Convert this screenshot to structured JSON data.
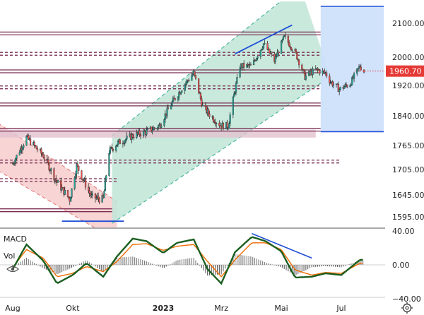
{
  "chart_data": [
    {
      "type": "candlestick",
      "title": "",
      "xlabel": "",
      "ylabel": "",
      "ylim": [
        1560,
        2160
      ],
      "x_range": [
        "2022-08-01",
        "2023-07-24"
      ],
      "y_ticks": [
        "2100.00",
        "2000.00",
        "1920.00",
        "1840.00",
        "1765.00",
        "1705.00",
        "1645.00",
        "1595.00"
      ],
      "y_tick_values": [
        2100,
        2000,
        1920,
        1840,
        1765,
        1705,
        1645,
        1595
      ],
      "x_ticks": [
        "Aug",
        "Okt",
        "2023",
        "Mrz",
        "Mai",
        "Jul"
      ],
      "x_tick_dates": [
        "2022-08-01",
        "2022-10-01",
        "2023-01-01",
        "2023-03-01",
        "2023-05-01",
        "2023-07-01"
      ],
      "last_price": "1960.70",
      "last_price_value": 1960.7,
      "price_points": [
        [
          "2022-08-01",
          1720
        ],
        [
          "2022-08-15",
          1785
        ],
        [
          "2022-09-01",
          1740
        ],
        [
          "2022-09-15",
          1675
        ],
        [
          "2022-09-28",
          1635
        ],
        [
          "2022-10-05",
          1715
        ],
        [
          "2022-10-20",
          1640
        ],
        [
          "2022-11-01",
          1635
        ],
        [
          "2022-11-07",
          1750
        ],
        [
          "2022-11-15",
          1770
        ],
        [
          "2022-12-01",
          1790
        ],
        [
          "2022-12-15",
          1800
        ],
        [
          "2022-12-28",
          1815
        ],
        [
          "2023-01-10",
          1875
        ],
        [
          "2023-01-26",
          1935
        ],
        [
          "2023-02-01",
          1955
        ],
        [
          "2023-02-10",
          1865
        ],
        [
          "2023-02-20",
          1835
        ],
        [
          "2023-03-01",
          1815
        ],
        [
          "2023-03-08",
          1815
        ],
        [
          "2023-03-20",
          1975
        ],
        [
          "2023-04-01",
          1975
        ],
        [
          "2023-04-13",
          2040
        ],
        [
          "2023-04-24",
          1990
        ],
        [
          "2023-05-04",
          2060
        ],
        [
          "2023-05-15",
          2015
        ],
        [
          "2023-05-25",
          1945
        ],
        [
          "2023-06-05",
          1965
        ],
        [
          "2023-06-15",
          1955
        ],
        [
          "2023-06-20",
          1930
        ],
        [
          "2023-06-29",
          1910
        ],
        [
          "2023-07-10",
          1925
        ],
        [
          "2023-07-20",
          1975
        ],
        [
          "2023-07-24",
          1960
        ]
      ],
      "horizontal_lines": [
        {
          "value": 2070,
          "style": "double-solid"
        },
        {
          "value": 2010,
          "style": "double-dashed"
        },
        {
          "value": 1960,
          "style": "double-solid"
        },
        {
          "value": 1915,
          "style": "double-dashed"
        },
        {
          "value": 1870,
          "style": "double-solid"
        },
        {
          "value": 1805,
          "style": "double-solid"
        },
        {
          "value": 1725,
          "style": "double-dashed"
        },
        {
          "value": 1680,
          "style": "double-dashed"
        },
        {
          "value": 1610,
          "style": "double-solid"
        }
      ],
      "zones": [
        {
          "type": "descending-channel",
          "color": "#f6c6c6"
        },
        {
          "type": "ascending-channel",
          "color": "#bfe5d7"
        },
        {
          "type": "box",
          "color": "#cfe0fb"
        },
        {
          "type": "band",
          "from": 1785,
          "to": 1805,
          "color": "#e2c2d0"
        }
      ],
      "colors": {
        "up": "#26a69a",
        "down": "#ef5350",
        "trend": "#1f4fd6",
        "level": "#7a2e52",
        "price_tag": "#e53935"
      }
    },
    {
      "type": "line",
      "title": "MACD",
      "legend": [
        "MACD",
        "Vol"
      ],
      "ylim": [
        -40,
        40
      ],
      "y_ticks": [
        "40.00",
        "0.00",
        "−40.00"
      ],
      "y_tick_values": [
        40,
        0,
        -40
      ],
      "series": [
        {
          "name": "MACD",
          "color": "#1b5e20",
          "values": [
            [
              "2022-08-01",
              -5
            ],
            [
              "2022-08-15",
              24
            ],
            [
              "2022-09-01",
              5
            ],
            [
              "2022-09-15",
              -22
            ],
            [
              "2022-10-01",
              -12
            ],
            [
              "2022-10-15",
              2
            ],
            [
              "2022-11-01",
              -14
            ],
            [
              "2022-11-15",
              10
            ],
            [
              "2022-12-01",
              31
            ],
            [
              "2022-12-15",
              28
            ],
            [
              "2023-01-01",
              14
            ],
            [
              "2023-01-15",
              26
            ],
            [
              "2023-02-01",
              30
            ],
            [
              "2023-02-15",
              -5
            ],
            [
              "2023-03-01",
              -22
            ],
            [
              "2023-03-15",
              15
            ],
            [
              "2023-04-01",
              33
            ],
            [
              "2023-04-15",
              28
            ],
            [
              "2023-05-01",
              16
            ],
            [
              "2023-05-15",
              -15
            ],
            [
              "2023-06-01",
              -14
            ],
            [
              "2023-06-15",
              -10
            ],
            [
              "2023-07-01",
              -12
            ],
            [
              "2023-07-20",
              6
            ]
          ]
        },
        {
          "values": [
            [
              "2022-08-01",
              -3
            ],
            [
              "2022-08-15",
              18
            ],
            [
              "2022-09-01",
              8
            ],
            [
              "2022-09-15",
              -14
            ],
            [
              "2022-10-01",
              -10
            ],
            [
              "2022-10-15",
              -2
            ],
            [
              "2022-11-01",
              -8
            ],
            [
              "2022-11-15",
              4
            ],
            [
              "2022-12-01",
              24
            ],
            [
              "2022-12-15",
              25
            ],
            [
              "2023-01-01",
              17
            ],
            [
              "2023-01-15",
              22
            ],
            [
              "2023-02-01",
              24
            ],
            [
              "2023-02-15",
              4
            ],
            [
              "2023-03-01",
              -14
            ],
            [
              "2023-03-15",
              6
            ],
            [
              "2023-04-01",
              26
            ],
            [
              "2023-04-15",
              26
            ],
            [
              "2023-05-01",
              18
            ],
            [
              "2023-05-15",
              -6
            ],
            [
              "2023-06-01",
              -12
            ],
            [
              "2023-06-15",
              -9
            ],
            [
              "2023-07-01",
              -10
            ],
            [
              "2023-07-20",
              2
            ]
          ],
          "color": "#ef6c00"
        }
      ]
    }
  ]
}
